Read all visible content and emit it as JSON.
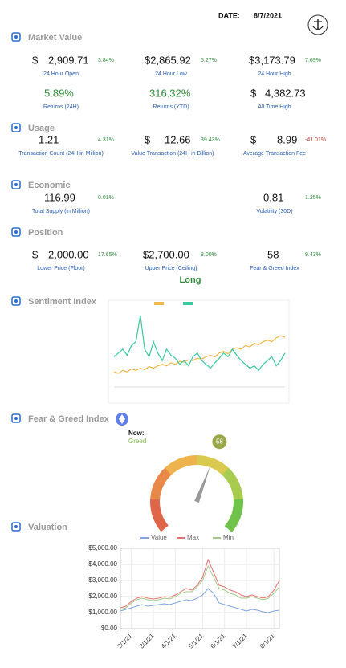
{
  "header": {
    "date_label": "DATE:",
    "date": "8/7/2021"
  },
  "market_value": {
    "title": "Market Value",
    "items": [
      {
        "prefix": "$",
        "value": "2,909.71",
        "change": "3.84%",
        "label": "24 Hour Open"
      },
      {
        "value": "$2,865.92",
        "change": "5.27%",
        "label": "24 Hour Low"
      },
      {
        "value": "$3,173.79",
        "change": "7.69%",
        "label": "24 Hour High"
      },
      {
        "value": "5.89%",
        "label": "Returns (24H)"
      },
      {
        "value": "316.32%",
        "label": "Returns (YTD)"
      },
      {
        "prefix": "$",
        "value": "4,382.73",
        "label": "All Time High"
      }
    ]
  },
  "usage": {
    "title": "Usage",
    "items": [
      {
        "value": "1.21",
        "change": "4.31%",
        "label": "Transaction Count (24H in Million)"
      },
      {
        "prefix": "$",
        "value": "12.66",
        "change": "39.43%",
        "label": "Value Transaction (24H in Billion)"
      },
      {
        "prefix": "$",
        "value": "8.99",
        "change": "-41.01%",
        "label": "Average Transaction Fee"
      }
    ]
  },
  "economic": {
    "title": "Economic",
    "items": [
      {
        "value": "116.99",
        "change": "0.01%",
        "label": "Total Supply (in Million)"
      },
      {
        "value": "0.81",
        "change": "1.25%",
        "label": "Volatility (30D)"
      }
    ]
  },
  "position": {
    "title": "Position",
    "items": [
      {
        "prefix": "$",
        "value": "2,000.00",
        "change": "17.65%",
        "label": "Lower Price (Floor)"
      },
      {
        "value": "$2,700.00",
        "change": "8.00%",
        "label": "Upper Price (Ceiling)"
      },
      {
        "value": "58",
        "change": "9.43%",
        "label": "Fear & Greed Index"
      }
    ],
    "signal": "Long"
  },
  "sentiment_index": {
    "title": "Sentiment Index",
    "chart_data": {
      "type": "line",
      "ylim": [
        0,
        100
      ],
      "series": [
        {
          "color": "#f2b84b",
          "values": [
            20,
            18,
            22,
            20,
            24,
            22,
            25,
            23,
            27,
            25,
            28,
            30,
            28,
            32,
            30,
            34,
            33,
            36,
            35,
            38,
            37,
            40,
            42,
            40,
            45,
            47,
            44,
            50,
            52,
            50,
            55,
            53,
            58,
            56,
            60,
            62,
            60,
            65,
            68,
            66
          ]
        },
        {
          "color": "#3cc9a0",
          "values": [
            40,
            45,
            50,
            42,
            55,
            60,
            95,
            50,
            40,
            60,
            45,
            35,
            50,
            42,
            38,
            30,
            35,
            28,
            40,
            45,
            35,
            30,
            25,
            32,
            38,
            45,
            40,
            50,
            42,
            35,
            30,
            25,
            28,
            22,
            30,
            35,
            40,
            28,
            35,
            45
          ]
        }
      ]
    }
  },
  "fear_greed": {
    "title": "Fear & Greed Index",
    "now_label": "Now:",
    "status": "Greed",
    "value": 58,
    "lim": [
      0,
      100
    ]
  },
  "valuation": {
    "title": "Valuation",
    "chart_data": {
      "type": "line",
      "categories": [
        null,
        null,
        "2/1/21",
        null,
        null,
        null,
        "3/1/21",
        null,
        null,
        null,
        "4/1/21",
        null,
        null,
        null,
        null,
        "5/1/21",
        null,
        null,
        null,
        "6/1/21",
        null,
        null,
        null,
        "7/1/21",
        null,
        null,
        null,
        null,
        "8/1/21",
        null
      ],
      "series": [
        {
          "name": "Value",
          "color": "#7ea6e0",
          "values": [
            1100,
            1200,
            1300,
            1400,
            1500,
            1400,
            1450,
            1500,
            1550,
            1500,
            1600,
            1700,
            1800,
            1750,
            1900,
            2100,
            2500,
            2200,
            1600,
            1500,
            1400,
            1300,
            1200,
            1100,
            1200,
            1150,
            1050,
            1000,
            1100,
            1150
          ]
        },
        {
          "name": "Max",
          "color": "#e57373",
          "values": [
            1300,
            1400,
            1700,
            1900,
            2000,
            1900,
            1850,
            1900,
            2000,
            1950,
            2100,
            2300,
            2500,
            2400,
            2700,
            3200,
            4300,
            3500,
            2700,
            2600,
            2400,
            2300,
            2100,
            2000,
            2100,
            2000,
            1900,
            2000,
            2400,
            3000
          ]
        },
        {
          "name": "Min",
          "color": "#a5c98a",
          "values": [
            1200,
            1300,
            1600,
            1800,
            1900,
            1800,
            1750,
            1800,
            1900,
            1850,
            2000,
            2200,
            2300,
            2300,
            2600,
            3000,
            3900,
            3200,
            2500,
            2400,
            2200,
            2100,
            1900,
            1900,
            2000,
            1900,
            1800,
            1900,
            2200,
            2600
          ]
        }
      ],
      "ylim": [
        0,
        5000
      ],
      "yticks": [
        {
          "value": 0,
          "label": "$0.00"
        },
        {
          "value": 1000,
          "label": "$1,000.00"
        },
        {
          "value": 2000,
          "label": "$2,000.00"
        },
        {
          "value": 3000,
          "label": "$3,000.00"
        },
        {
          "value": 4000,
          "label": "$4,000.00"
        },
        {
          "value": 5000,
          "label": "$5,000.00"
        }
      ],
      "grid": true
    }
  }
}
